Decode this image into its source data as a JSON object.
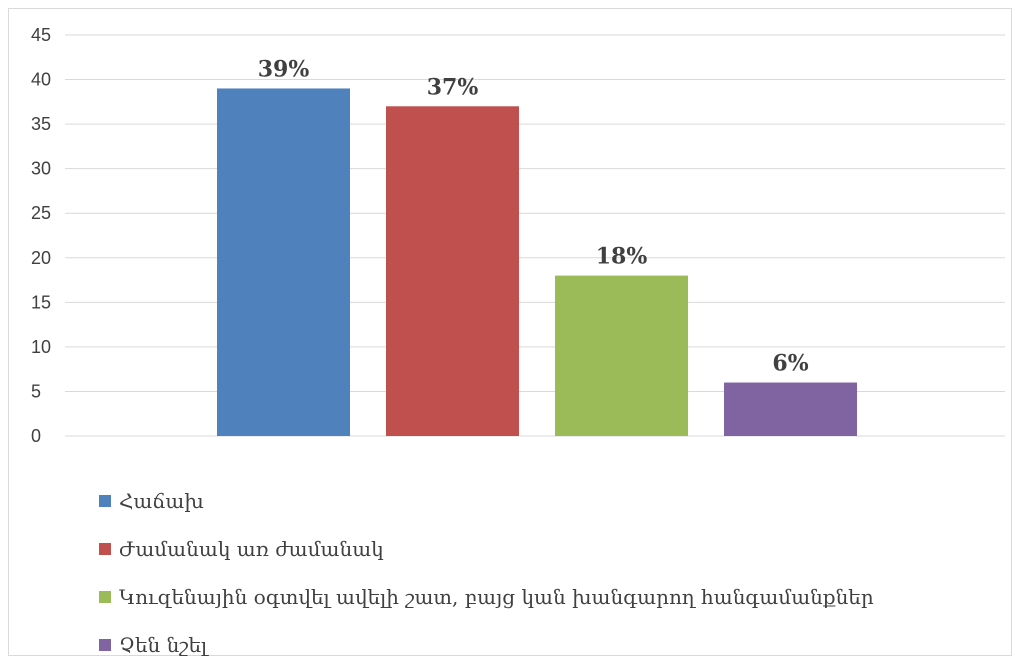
{
  "chart_data": {
    "type": "bar",
    "title": "",
    "xlabel": "",
    "ylabel": "",
    "ylim": [
      0,
      45
    ],
    "yticks": [
      0,
      5,
      10,
      15,
      20,
      25,
      30,
      35,
      40,
      45
    ],
    "grid": true,
    "legend_position": "bottom",
    "categories": [
      "Հաճախ",
      "Ժամանակ առ ժամանակ",
      "Կուզենային օգտվել ավելի շատ, բայց կան խանգարող հանգամանքներ",
      "Չեն նշել"
    ],
    "values": [
      39,
      37,
      18,
      6
    ],
    "data_labels": [
      "39%",
      "37%",
      "18%",
      "6%"
    ],
    "colors": [
      "#4F81BD",
      "#C0504D",
      "#9BBB59",
      "#8064A2"
    ],
    "axis_color": "#d9d9d9",
    "text_color": "#404040"
  }
}
